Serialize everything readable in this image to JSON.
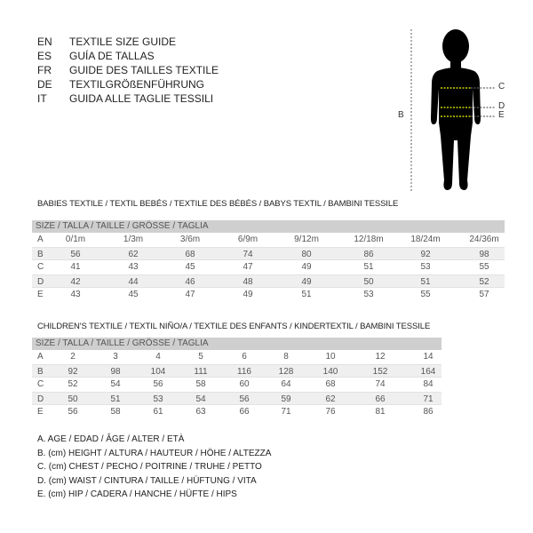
{
  "languages": [
    {
      "code": "EN",
      "text": "TEXTILE SIZE GUIDE"
    },
    {
      "code": "ES",
      "text": "GUÍA DE TALLAS"
    },
    {
      "code": "FR",
      "text": "GUIDE DES TAILLES TEXTILE"
    },
    {
      "code": "DE",
      "text": "TEXTILGRÖßENFÜHRUNG"
    },
    {
      "code": "IT",
      "text": "GUIDA ALLE TAGLIE TESSILI"
    }
  ],
  "figure": {
    "labels": {
      "b": "B",
      "c": "C",
      "d": "D",
      "e": "E"
    },
    "accent": "#c8d400"
  },
  "babies": {
    "title": "BABIES TEXTILE / TEXTIL BEBÉS / TEXTILE DES BÉBÉS / BABYS TEXTIL  / BAMBINI TESSILE",
    "header": "SIZE / TALLA / TAILLE / GRÖSSE / TAGLIA",
    "rows": [
      {
        "label": "A",
        "values": [
          "0/1m",
          "1/3m",
          "3/6m",
          "6/9m",
          "9/12m",
          "12/18m",
          "18/24m",
          "24/36m"
        ]
      },
      {
        "label": "B",
        "values": [
          "56",
          "62",
          "68",
          "74",
          "80",
          "86",
          "92",
          "98"
        ]
      },
      {
        "label": "C",
        "values": [
          "41",
          "43",
          "45",
          "47",
          "49",
          "51",
          "53",
          "55"
        ]
      },
      {
        "label": "D",
        "values": [
          "42",
          "44",
          "46",
          "48",
          "49",
          "50",
          "51",
          "52"
        ]
      },
      {
        "label": "E",
        "values": [
          "43",
          "45",
          "47",
          "49",
          "51",
          "53",
          "55",
          "57"
        ]
      }
    ]
  },
  "children": {
    "title": "CHILDREN'S TEXTILE / TEXTIL NIÑO/A / TEXTILE DES ENFANTS / KINDERTEXTIL / BAMBINI TESSILE",
    "header": "SIZE / TALLA / TAILLE / GRÖSSE / TAGLIA",
    "rows": [
      {
        "label": "A",
        "values": [
          "2",
          "3",
          "4",
          "5",
          "6",
          "8",
          "10",
          "12",
          "14"
        ]
      },
      {
        "label": "B",
        "values": [
          "92",
          "98",
          "104",
          "111",
          "116",
          "128",
          "140",
          "152",
          "164"
        ]
      },
      {
        "label": "C",
        "values": [
          "52",
          "54",
          "56",
          "58",
          "60",
          "64",
          "68",
          "74",
          "84"
        ]
      },
      {
        "label": "D",
        "values": [
          "50",
          "51",
          "53",
          "54",
          "56",
          "59",
          "62",
          "66",
          "71"
        ]
      },
      {
        "label": "E",
        "values": [
          "56",
          "58",
          "61",
          "63",
          "66",
          "71",
          "76",
          "81",
          "86"
        ]
      }
    ]
  },
  "legend": [
    "A. AGE / EDAD / ÂGE / ALTER / ETÀ",
    "B. (cm) HEIGHT / ALTURA / HAUTEUR / HÖHE / ALTEZZA",
    "C. (cm) CHEST / PECHO / POITRINE / TRUHE / PETTO",
    "D. (cm) WAIST / CINTURA / TAILLE / HÜFTUNG / VITA",
    "E. (cm) HIP / CADERA / HANCHE / HÜFTE / HIPS"
  ]
}
